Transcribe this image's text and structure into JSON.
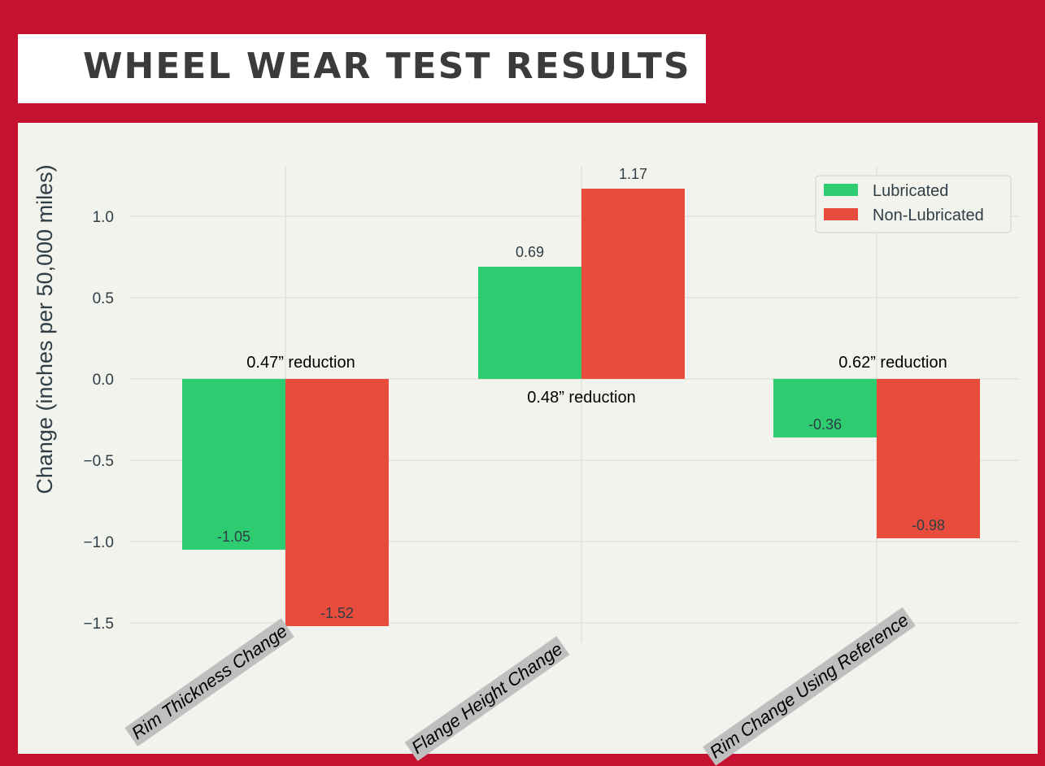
{
  "header": {
    "title": "WHEEL WEAR TEST RESULTS"
  },
  "colors": {
    "frame": "#C41230",
    "panel": "#F3F3EE",
    "lubricated": "#2ECC71",
    "non_lubricated": "#E74C3C"
  },
  "chart_data": {
    "type": "bar",
    "categories": [
      "Rim Thickness Change",
      "Flange Height Change",
      "Rim Change Using Reference"
    ],
    "series": [
      {
        "name": "Lubricated",
        "values": [
          -1.05,
          0.69,
          -0.36
        ],
        "labels": [
          "-1.05",
          "0.69",
          "-0.36"
        ]
      },
      {
        "name": "Non-Lubricated",
        "values": [
          -1.52,
          1.17,
          -0.98
        ],
        "labels": [
          "-1.52",
          "1.17",
          "-0.98"
        ]
      }
    ],
    "ylabel": "Change (inches per 50,000 miles)",
    "xlabel": "",
    "ylim": [
      -1.65,
      1.3
    ],
    "yticks": [
      1.0,
      0.5,
      0.0,
      -0.5,
      -1.0,
      -1.5
    ],
    "ytick_labels": [
      "1.0",
      "0.5",
      "0.0",
      "−0.5",
      "−1.0",
      "−1.5"
    ],
    "grid": true,
    "legend": "top-right",
    "annotations": [
      "0.47” reduction",
      "0.48” reduction",
      "0.62” reduction"
    ]
  }
}
